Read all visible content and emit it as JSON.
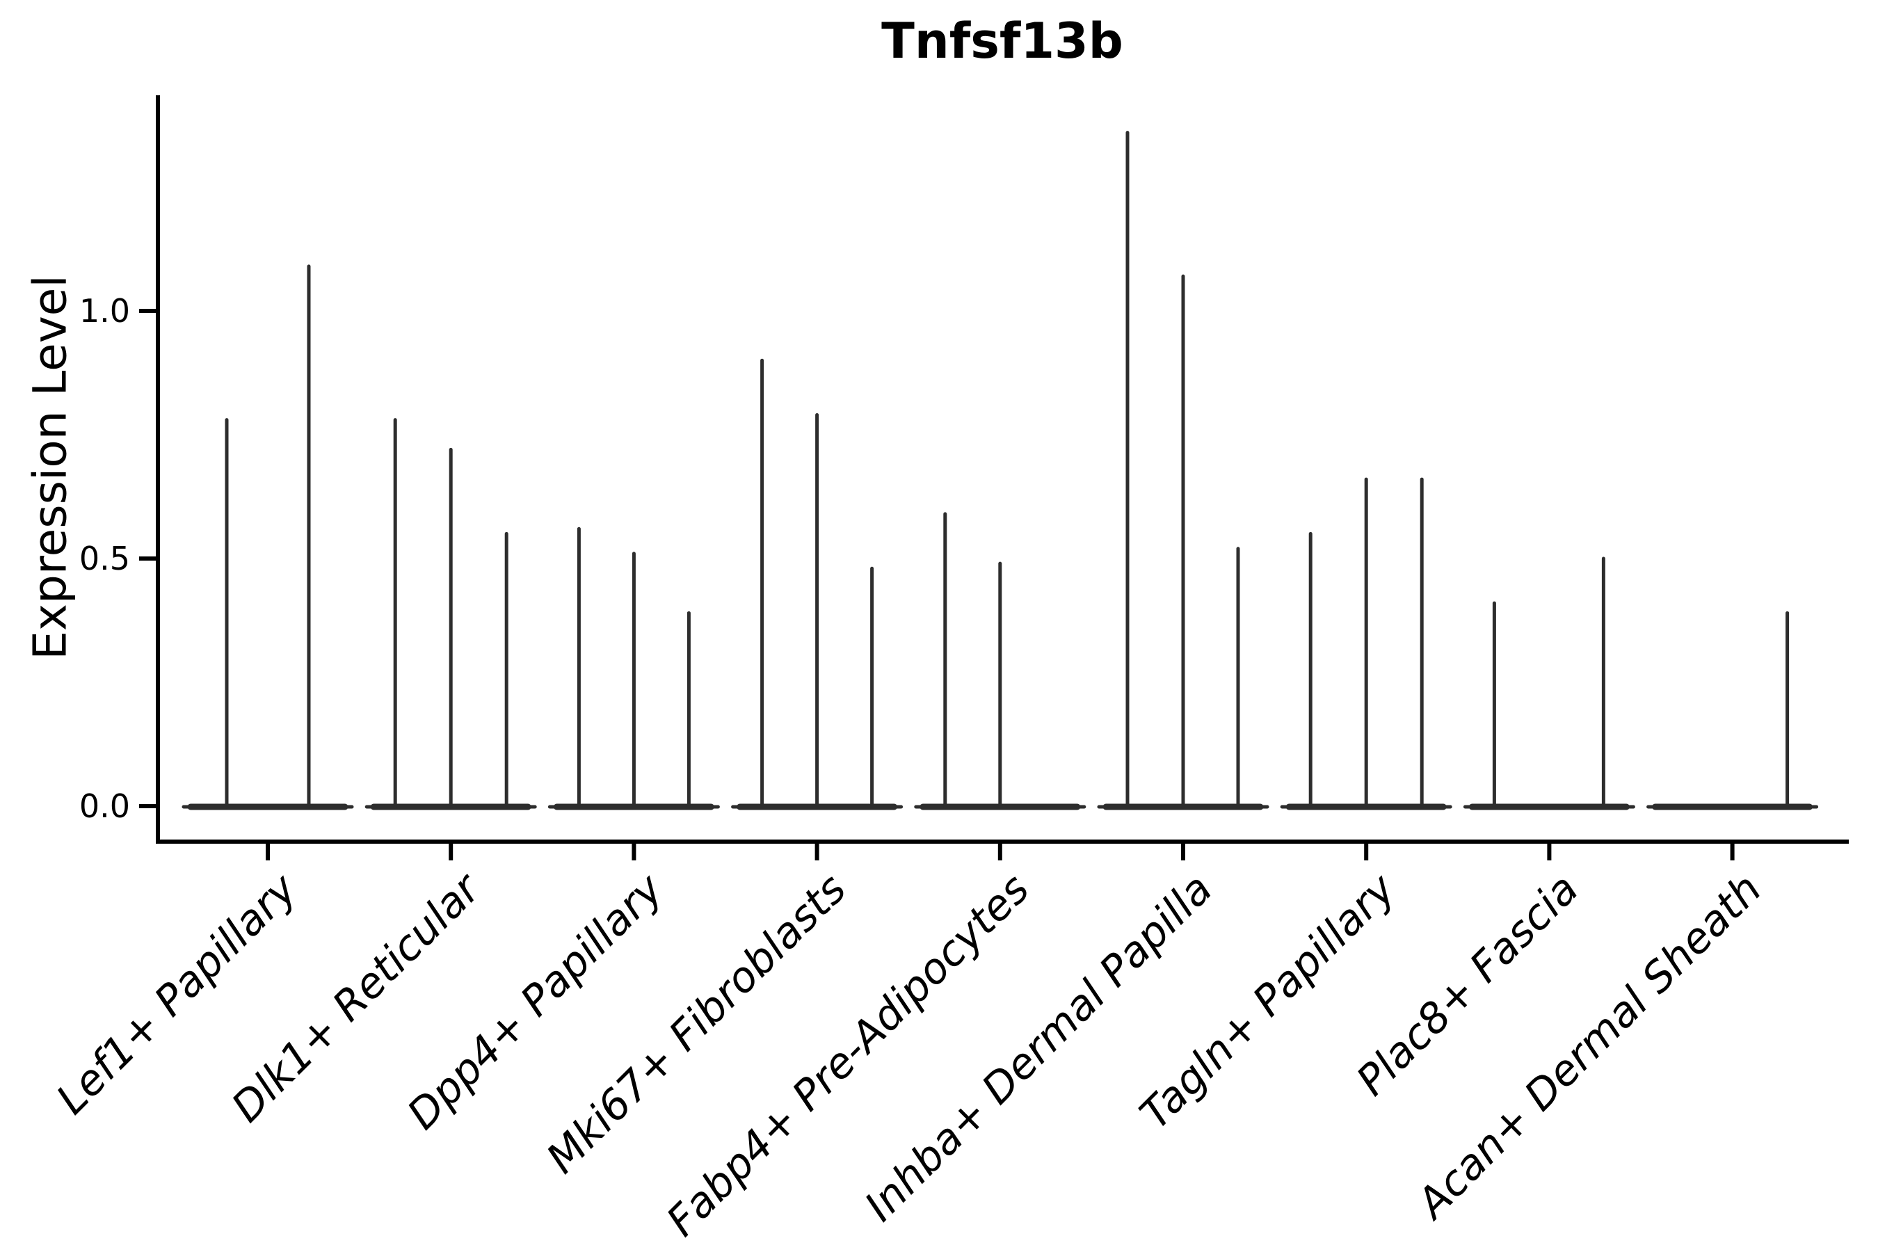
{
  "figure": {
    "background": "#ffffff"
  },
  "chart_data": {
    "type": "violin",
    "title": "Tnfsf13b",
    "ylabel": "Expression Level",
    "xlabel": "",
    "ylim": [
      -0.07,
      1.43
    ],
    "grid": false,
    "legend": "none",
    "yticks": [
      {
        "value": 0.0,
        "label": "0.0"
      },
      {
        "value": 0.5,
        "label": "0.5"
      },
      {
        "value": 1.0,
        "label": "1.0"
      }
    ],
    "categories": [
      "Lef1+ Papillary",
      "Dlk1+ Reticular",
      "Dpp4+ Papillary",
      "Mki67+ Fibroblasts",
      "Fabp4+ Pre-Adipocytes",
      "Inhba+ Dermal Papilla",
      "Tagln+ Papillary",
      "Plac8+ Fascia",
      "Acan+ Dermal Sheath"
    ],
    "groups": [
      {
        "label": "Lef1+ Papillary",
        "violins": [
          {
            "offset": -59,
            "max": 0.78
          },
          {
            "offset": 59,
            "max": 1.09
          }
        ]
      },
      {
        "label": "Dlk1+ Reticular",
        "violins": [
          {
            "offset": -80,
            "max": 0.78
          },
          {
            "offset": 0,
            "max": 0.72
          },
          {
            "offset": 80,
            "max": 0.55
          }
        ]
      },
      {
        "label": "Dpp4+ Papillary",
        "violins": [
          {
            "offset": -79,
            "max": 0.56
          },
          {
            "offset": 0,
            "max": 0.51
          },
          {
            "offset": 79,
            "max": 0.39
          }
        ]
      },
      {
        "label": "Mki67+ Fibroblasts",
        "violins": [
          {
            "offset": -79,
            "max": 0.9
          },
          {
            "offset": 0,
            "max": 0.79
          },
          {
            "offset": 79,
            "max": 0.48
          }
        ]
      },
      {
        "label": "Fabp4+ Pre-Adipocytes",
        "violins": [
          {
            "offset": -79,
            "max": 0.59
          },
          {
            "offset": 0,
            "max": 0.49
          }
        ]
      },
      {
        "label": "Inhba+ Dermal Papilla",
        "violins": [
          {
            "offset": -80,
            "max": 1.36
          },
          {
            "offset": 0,
            "max": 1.07
          },
          {
            "offset": 79,
            "max": 0.52
          }
        ]
      },
      {
        "label": "Tagln+ Papillary",
        "violins": [
          {
            "offset": -80,
            "max": 0.55
          },
          {
            "offset": 0,
            "max": 0.66
          },
          {
            "offset": 80,
            "max": 0.66
          }
        ]
      },
      {
        "label": "Plac8+ Fascia",
        "violins": [
          {
            "offset": -79,
            "max": 0.41
          },
          {
            "offset": 78,
            "max": 0.5
          }
        ]
      },
      {
        "label": "Acan+ Dermal Sheath",
        "violins": [
          {
            "offset": 79,
            "max": 0.39
          }
        ]
      }
    ],
    "colors": {
      "violin": "#2d2d2d",
      "spine": "#000000",
      "text": "#000000"
    },
    "baseline_value": 0.0
  }
}
